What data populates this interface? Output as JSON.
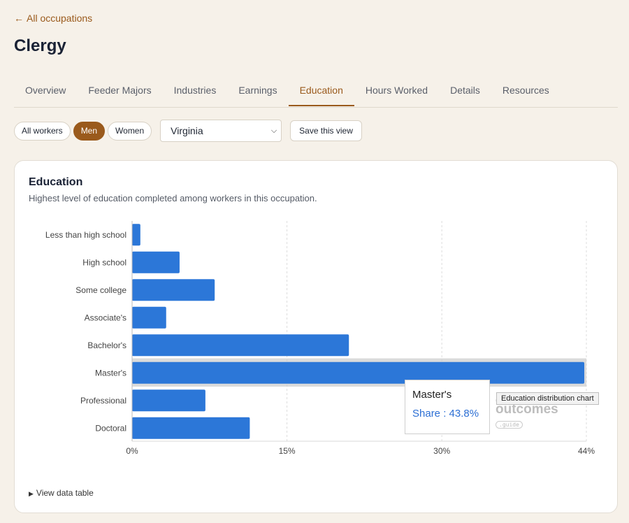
{
  "nav": {
    "back_arrow": "←",
    "back_label": "All occupations"
  },
  "page": {
    "title": "Clergy"
  },
  "tabs": [
    {
      "label": "Overview"
    },
    {
      "label": "Feeder Majors"
    },
    {
      "label": "Industries"
    },
    {
      "label": "Earnings"
    },
    {
      "label": "Education",
      "active": true
    },
    {
      "label": "Hours Worked"
    },
    {
      "label": "Details"
    },
    {
      "label": "Resources"
    }
  ],
  "filters": {
    "pills": [
      {
        "label": "All workers"
      },
      {
        "label": "Men",
        "active": true
      },
      {
        "label": "Women"
      }
    ],
    "region": "Virginia",
    "save_label": "Save this view"
  },
  "card": {
    "title": "Education",
    "subtitle": "Highest level of education completed among workers in this occupation.",
    "view_table_label": "View data table"
  },
  "tooltip": {
    "category": "Master's",
    "value_text": "Share : 43.8%"
  },
  "watermark": {
    "top": "career",
    "main": "outcomes",
    "bottom": ".guide"
  },
  "hover_tip": "Education distribution chart",
  "colors": {
    "accent": "#9a5a1c",
    "bar": "#2c77d8",
    "background": "#f6f1e9"
  },
  "icons": {
    "back": "left-arrow-icon",
    "select": "chevron-down-icon",
    "toggle": "triangle-right-icon"
  },
  "chart_data": {
    "type": "bar",
    "orientation": "horizontal",
    "categories": [
      "Less than high school",
      "High school",
      "Some college",
      "Associate's",
      "Bachelor's",
      "Master's",
      "Professional",
      "Doctoral"
    ],
    "values": [
      0.8,
      4.6,
      8.0,
      3.3,
      21.0,
      43.8,
      7.1,
      11.4
    ],
    "xlim": [
      0,
      44
    ],
    "x_ticks": [
      "0%",
      "15%",
      "30%",
      "44%"
    ],
    "x_tick_values": [
      0,
      15,
      30,
      44
    ],
    "highlighted": "Master's",
    "grid": true
  }
}
